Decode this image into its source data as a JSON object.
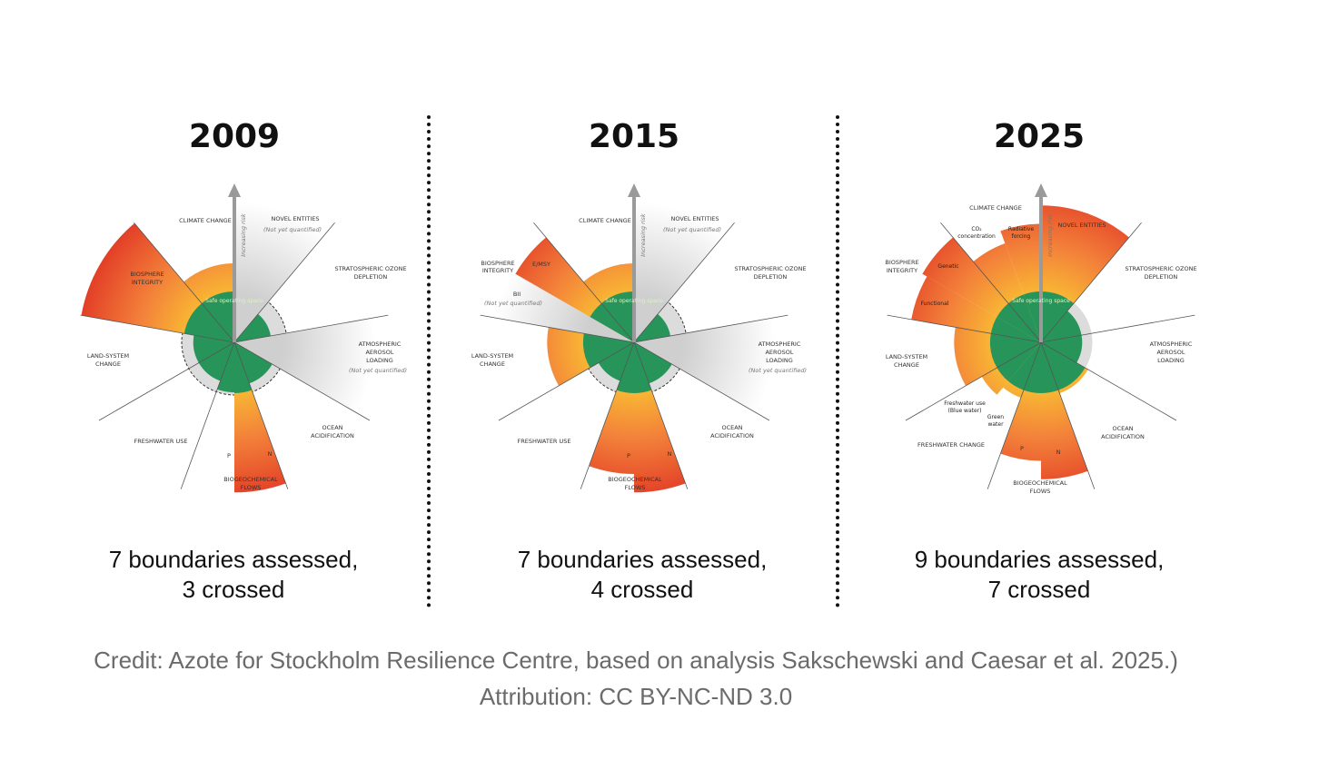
{
  "panels": [
    {
      "year": "2009",
      "caption": [
        "7 boundaries assessed,",
        "3 crossed"
      ],
      "labels": {
        "climate": [
          "CLIMATE CHANGE"
        ],
        "novel": [
          "NOVEL ENTITIES",
          "(Not yet quantified)"
        ],
        "ozone": [
          "STRATOSPHERIC OZONE",
          "DEPLETION"
        ],
        "aerosol": [
          "ATMOSPHERIC",
          "AEROSOL",
          "LOADING",
          "(Not yet quantified)"
        ],
        "ocean": [
          "OCEAN",
          "ACIDIFICATION"
        ],
        "bio": [
          "BIOGEOCHEMICAL",
          "FLOWS"
        ],
        "p": [
          "P"
        ],
        "n": [
          "N"
        ],
        "fresh": [
          "FRESHWATER USE"
        ],
        "land": [
          "LAND-SYSTEM",
          "CHANGE"
        ],
        "biosphere": [
          "BIOSPHERE",
          "INTEGRITY"
        ],
        "risk": [
          "Increasing risk"
        ],
        "safe": [
          "Safe operating space"
        ]
      },
      "segments": [
        {
          "name": "climate-change",
          "from": 320,
          "to": 360,
          "level": 1.5
        },
        {
          "name": "novel-entities",
          "from": 0,
          "to": 40,
          "level": null
        },
        {
          "name": "ozone-depletion",
          "from": 40,
          "to": 80,
          "level": 0.7
        },
        {
          "name": "aerosol-loading",
          "from": 80,
          "to": 120,
          "level": null
        },
        {
          "name": "ocean-acidification",
          "from": 120,
          "to": 160,
          "level": 0.83
        },
        {
          "name": "nitrogen",
          "from": 160,
          "to": 180,
          "level": 2.85
        },
        {
          "name": "phosphorus",
          "from": 180,
          "to": 200,
          "level": 0.95
        },
        {
          "name": "freshwater-use",
          "from": 200,
          "to": 240,
          "level": 0.78
        },
        {
          "name": "land-system-change",
          "from": 240,
          "to": 280,
          "level": 0.78
        },
        {
          "name": "biosphere-integrity",
          "from": 280,
          "to": 320,
          "level": 2.95
        }
      ]
    },
    {
      "year": "2015",
      "caption": [
        "7 boundaries assessed,",
        "4 crossed"
      ],
      "labels": {
        "climate": [
          "CLIMATE CHANGE"
        ],
        "novel": [
          "NOVEL ENTITIES",
          "(Not yet quantified)"
        ],
        "ozone": [
          "STRATOSPHERIC OZONE",
          "DEPLETION"
        ],
        "aerosol": [
          "ATMOSPHERIC",
          "AEROSOL",
          "LOADING",
          "(Not yet quantified)"
        ],
        "ocean": [
          "OCEAN",
          "ACIDIFICATION"
        ],
        "bio": [
          "BIOGEOCHEMICAL",
          "FLOWS"
        ],
        "p": [
          "P"
        ],
        "n": [
          "N"
        ],
        "fresh": [
          "FRESHWATER USE"
        ],
        "land": [
          "LAND-SYSTEM",
          "CHANGE"
        ],
        "biosphere": [
          "BIOSPHERE",
          "INTEGRITY"
        ],
        "emsy": [
          "E/MSY"
        ],
        "bii": [
          "BII",
          "(Not yet quantified)"
        ],
        "risk": [
          "Increasing risk"
        ],
        "safe": [
          "Safe operating space"
        ]
      },
      "segments": [
        {
          "name": "climate-change",
          "from": 320,
          "to": 360,
          "level": 1.5
        },
        {
          "name": "novel-entities",
          "from": 0,
          "to": 40,
          "level": null
        },
        {
          "name": "ozone-depletion",
          "from": 40,
          "to": 80,
          "level": 0.7
        },
        {
          "name": "aerosol-loading",
          "from": 80,
          "to": 120,
          "level": null
        },
        {
          "name": "ocean-acidification",
          "from": 120,
          "to": 160,
          "level": 0.83
        },
        {
          "name": "nitrogen",
          "from": 160,
          "to": 180,
          "level": 2.85
        },
        {
          "name": "phosphorus",
          "from": 180,
          "to": 200,
          "level": 2.5
        },
        {
          "name": "freshwater-use",
          "from": 200,
          "to": 240,
          "level": 0.78
        },
        {
          "name": "land-system-change",
          "from": 240,
          "to": 280,
          "level": 1.65
        },
        {
          "name": "bii",
          "from": 280,
          "to": 300,
          "level": null
        },
        {
          "name": "e-msy",
          "from": 300,
          "to": 320,
          "level": 2.6
        }
      ]
    },
    {
      "year": "2025",
      "caption": [
        "9 boundaries assessed,",
        "7 crossed"
      ],
      "labels": {
        "climate": [
          "CLIMATE CHANGE"
        ],
        "co2": [
          "CO₂",
          "concentration"
        ],
        "radiative": [
          "Radiative",
          "forcing"
        ],
        "novel": [
          "NOVEL ENTITIES"
        ],
        "ozone": [
          "STRATOSPHERIC OZONE",
          "DEPLETION"
        ],
        "aerosol": [
          "ATMOSPHERIC",
          "AEROSOL",
          "LOADING"
        ],
        "ocean": [
          "OCEAN",
          "ACIDIFICATION"
        ],
        "bio": [
          "BIOGEOCHEMICAL",
          "FLOWS"
        ],
        "p": [
          "P"
        ],
        "n": [
          "N"
        ],
        "fresh": [
          "FRESHWATER CHANGE"
        ],
        "bluewater": [
          "Freshwater use",
          "(Blue water)"
        ],
        "greenwater": [
          "Green",
          "water"
        ],
        "land": [
          "LAND-SYSTEM",
          "CHANGE"
        ],
        "biosphere": [
          "BIOSPHERE",
          "INTEGRITY"
        ],
        "genetic": [
          "Genetic"
        ],
        "functional": [
          "Functional"
        ],
        "risk": [
          "Increasing risk"
        ],
        "safe": [
          "Safe operating space"
        ]
      },
      "segments": [
        {
          "name": "co2-concentration",
          "from": 320,
          "to": 340,
          "level": 2.0
        },
        {
          "name": "radiative-forcing",
          "from": 340,
          "to": 360,
          "level": 2.25
        },
        {
          "name": "novel-entities",
          "from": 0,
          "to": 40,
          "level": 2.6
        },
        {
          "name": "ozone-depletion",
          "from": 40,
          "to": 80,
          "level": 0.78
        },
        {
          "name": "aerosol-loading",
          "from": 80,
          "to": 120,
          "level": 0.78
        },
        {
          "name": "ocean-acidification",
          "from": 120,
          "to": 160,
          "level": 1.03
        },
        {
          "name": "nitrogen",
          "from": 160,
          "to": 180,
          "level": 2.6
        },
        {
          "name": "phosphorus",
          "from": 180,
          "to": 200,
          "level": 2.25
        },
        {
          "name": "blue-water",
          "from": 200,
          "to": 220,
          "level": 1.12
        },
        {
          "name": "green-water",
          "from": 220,
          "to": 240,
          "level": 1.3
        },
        {
          "name": "land-system-change",
          "from": 240,
          "to": 280,
          "level": 1.65
        },
        {
          "name": "functional",
          "from": 280,
          "to": 300,
          "level": 2.5
        },
        {
          "name": "genetic",
          "from": 300,
          "to": 320,
          "level": 2.6
        }
      ]
    }
  ],
  "colors": {
    "safe": "#27955a",
    "low": "#f8b334",
    "mid": "#f3823a",
    "high": "#e23b26",
    "unquantified": "#cfcfcf"
  },
  "credit": [
    "Credit: Azote for Stockholm Resilience Centre, based on analysis Sakschewski and Caesar et al. 2025.)",
    "Attribution: CC BY-NC-ND 3.0"
  ]
}
